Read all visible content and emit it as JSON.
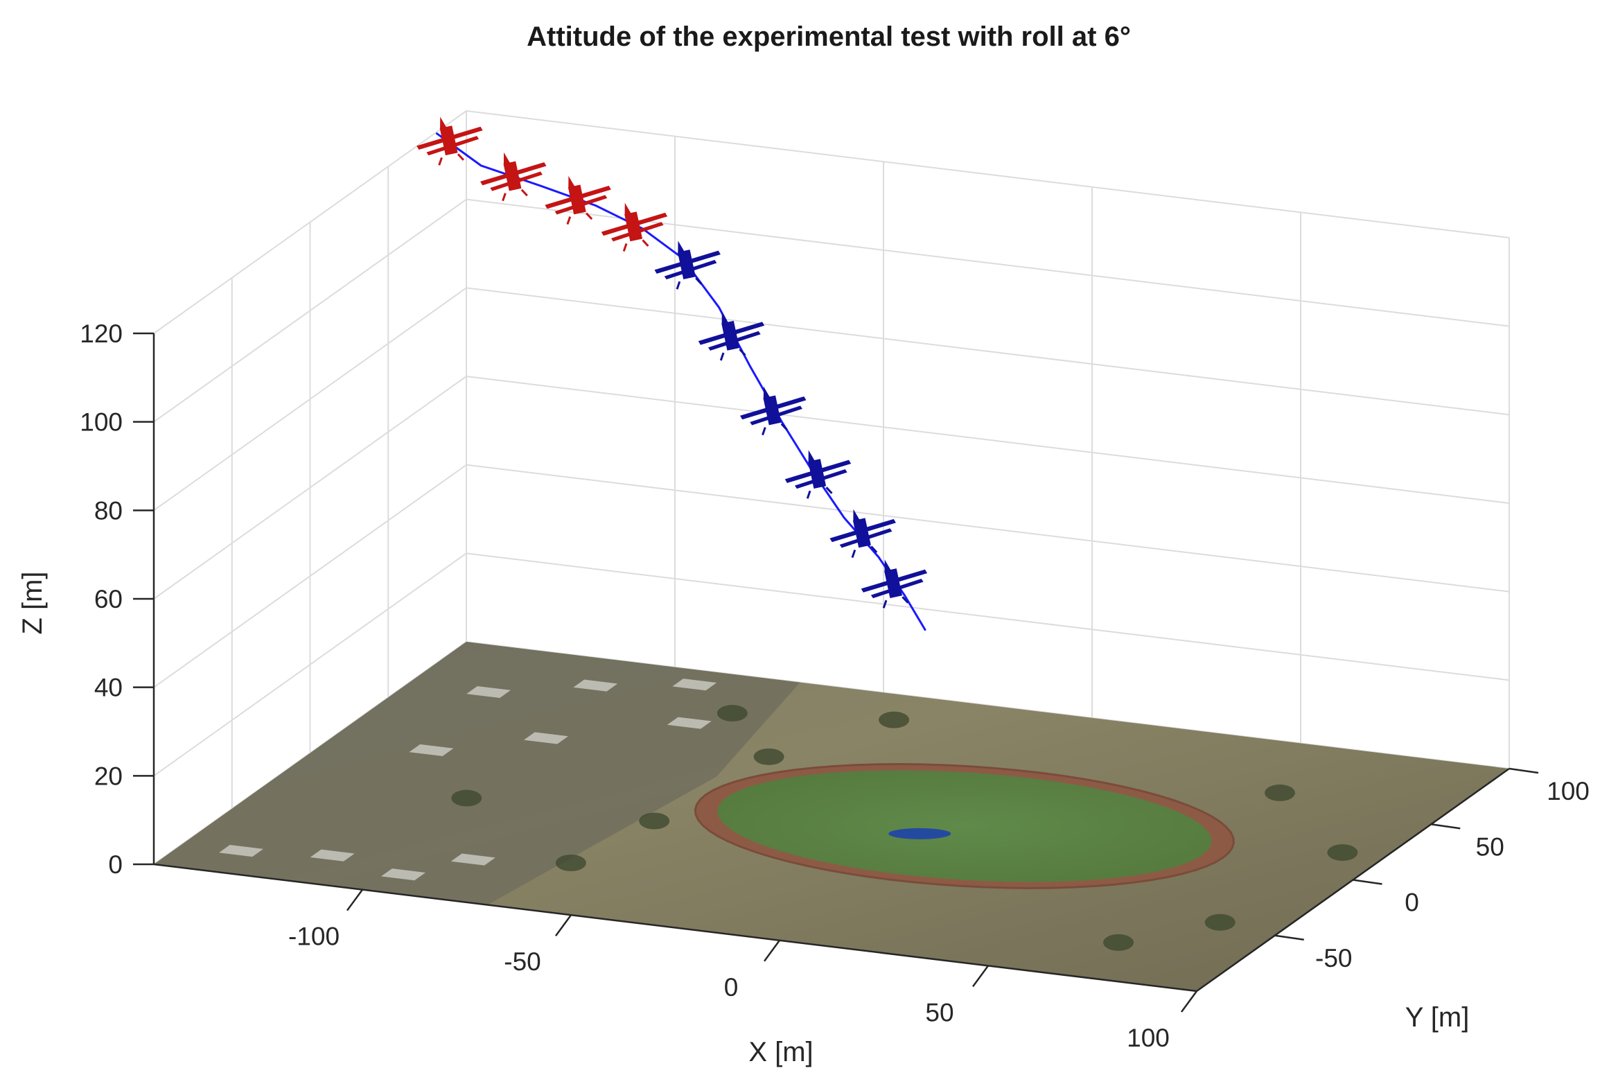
{
  "chart_data": {
    "type": "line3d",
    "title": "Attitude of the experimental test with roll at 6°",
    "xlabel": "X [m]",
    "ylabel": "Y [m]",
    "zlabel": "Z [m]",
    "xlim": [
      -150,
      100
    ],
    "ylim": [
      -100,
      100
    ],
    "zlim": [
      0,
      120
    ],
    "xticks": [
      -100,
      -50,
      0,
      50,
      100
    ],
    "yticks": [
      -50,
      0,
      50,
      100
    ],
    "zticks": [
      0,
      20,
      40,
      60,
      80,
      100,
      120
    ],
    "grid": true,
    "ground_texture": "satellite image of sports field with running track",
    "trajectory": {
      "name": "flight path",
      "color": "#1a1aff",
      "x": [
        -146,
        -130,
        -112,
        -95,
        -80,
        -66,
        -52,
        -40,
        -28,
        -16,
        -4,
        8,
        18,
        26
      ],
      "y": [
        70,
        56,
        46,
        36,
        26,
        14,
        0,
        -12,
        -24,
        -36,
        -48,
        -58,
        -68,
        -76
      ],
      "z": [
        123,
        121,
        121,
        121,
        120,
        118,
        112,
        103,
        95,
        88,
        82,
        77,
        72,
        67
      ]
    },
    "aircraft": [
      {
        "x": -142,
        "y": 68,
        "z": 122,
        "roll": 6,
        "color": "#c41414"
      },
      {
        "x": -120,
        "y": 50,
        "z": 121,
        "roll": 6,
        "color": "#c41414"
      },
      {
        "x": -100,
        "y": 38,
        "z": 121,
        "roll": 6,
        "color": "#c41414"
      },
      {
        "x": -82,
        "y": 26,
        "z": 120,
        "roll": 6,
        "color": "#c41414"
      },
      {
        "x": -64,
        "y": 12,
        "z": 117,
        "roll": 6,
        "color": "#10109a"
      },
      {
        "x": -46,
        "y": -8,
        "z": 108,
        "roll": 6,
        "color": "#10109a"
      },
      {
        "x": -30,
        "y": -24,
        "z": 97,
        "roll": 6,
        "color": "#10109a"
      },
      {
        "x": -14,
        "y": -38,
        "z": 88,
        "roll": 6,
        "color": "#10109a"
      },
      {
        "x": 2,
        "y": -52,
        "z": 80,
        "roll": 6,
        "color": "#10109a"
      },
      {
        "x": 14,
        "y": -64,
        "z": 73,
        "roll": 6,
        "color": "#10109a"
      }
    ]
  }
}
